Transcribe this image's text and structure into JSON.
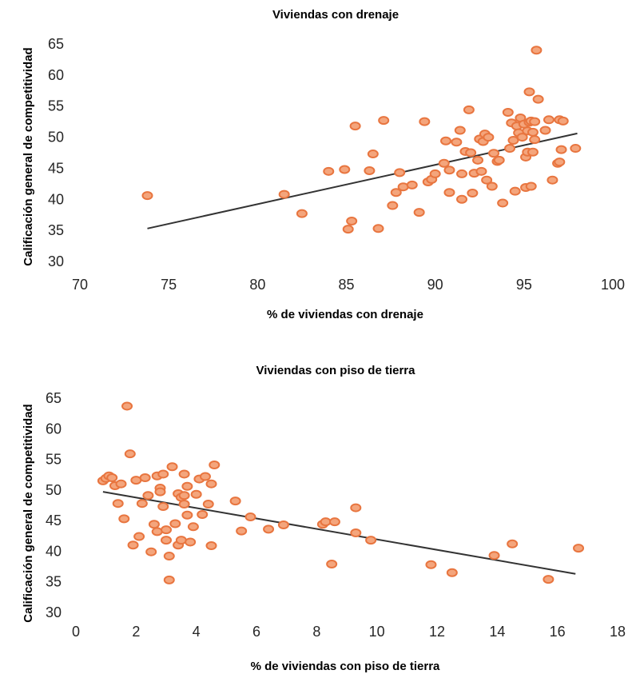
{
  "chart_data": [
    {
      "type": "scatter",
      "title": "Viviendas con drenaje",
      "xlabel": "% de viviendas con drenaje",
      "ylabel": "Calificación general de competitividad",
      "xlim": [
        70,
        100
      ],
      "ylim": [
        30,
        65
      ],
      "xticks": [
        "70",
        "75",
        "80",
        "85",
        "90",
        "95",
        "100"
      ],
      "yticks": [
        "30",
        "35",
        "40",
        "45",
        "50",
        "55",
        "60",
        "65"
      ],
      "colors": {
        "marker_fill": "#f4a57c",
        "marker_edge": "#e8753f",
        "trendline": "#333333"
      },
      "trendline": {
        "x": [
          73.8,
          98.0
        ],
        "y": [
          35.3,
          50.6
        ]
      },
      "points": {
        "x": [
          73.8,
          81.5,
          82.5,
          84.0,
          84.9,
          85.1,
          85.3,
          85.5,
          86.3,
          86.5,
          86.8,
          87.1,
          87.6,
          87.8,
          88.0,
          88.2,
          88.7,
          89.1,
          89.4,
          89.6,
          89.8,
          90.0,
          90.5,
          90.6,
          90.8,
          90.8,
          91.2,
          91.4,
          91.5,
          91.5,
          91.7,
          91.9,
          92.0,
          92.1,
          92.2,
          92.4,
          92.5,
          92.6,
          92.7,
          92.8,
          92.9,
          93.0,
          93.2,
          93.3,
          93.5,
          93.6,
          93.8,
          94.1,
          94.2,
          94.3,
          94.4,
          94.5,
          94.6,
          94.7,
          94.8,
          94.9,
          95.0,
          95.1,
          95.1,
          95.2,
          95.2,
          95.3,
          95.3,
          95.4,
          95.4,
          95.5,
          95.5,
          95.6,
          95.6,
          95.7,
          95.8,
          96.2,
          96.4,
          96.6,
          96.9,
          97.0,
          97.0,
          97.1,
          97.2,
          97.9
        ],
        "y": [
          40.6,
          40.8,
          37.7,
          44.5,
          44.8,
          35.2,
          36.5,
          51.8,
          44.6,
          47.3,
          35.3,
          52.7,
          39.0,
          41.1,
          44.3,
          42.0,
          42.3,
          37.9,
          52.5,
          42.8,
          43.2,
          44.1,
          45.8,
          49.4,
          44.7,
          41.1,
          49.2,
          51.1,
          44.1,
          40.0,
          47.7,
          54.4,
          47.5,
          41.0,
          44.2,
          46.3,
          49.7,
          44.5,
          49.3,
          50.5,
          43.1,
          50.0,
          42.1,
          47.4,
          46.1,
          46.3,
          39.4,
          54.0,
          48.2,
          52.3,
          49.5,
          41.3,
          51.8,
          50.7,
          53.1,
          50.0,
          52.1,
          41.9,
          46.8,
          47.6,
          51.0,
          52.4,
          57.3,
          42.1,
          52.6,
          50.8,
          47.6,
          52.5,
          49.6,
          64.0,
          56.1,
          51.1,
          52.8,
          43.1,
          45.8,
          52.8,
          46.0,
          48.0,
          52.6,
          48.2
        ]
      }
    },
    {
      "type": "scatter",
      "title": "Viviendas con piso de tierra",
      "xlabel": "% de viviendas con piso de tierra",
      "ylabel": "Calificación general de competitividad",
      "xlim": [
        0,
        18
      ],
      "ylim": [
        30,
        65
      ],
      "xticks": [
        "0",
        "2",
        "4",
        "6",
        "8",
        "10",
        "12",
        "14",
        "16",
        "18"
      ],
      "yticks": [
        "30",
        "35",
        "40",
        "45",
        "50",
        "55",
        "60",
        "65"
      ],
      "colors": {
        "marker_fill": "#f4a57c",
        "marker_edge": "#e8753f",
        "trendline": "#333333"
      },
      "trendline": {
        "x": [
          0.9,
          16.6
        ],
        "y": [
          49.7,
          36.3
        ]
      },
      "points": {
        "x": [
          0.9,
          1.0,
          1.1,
          1.2,
          1.3,
          1.4,
          1.5,
          1.6,
          1.7,
          1.8,
          1.9,
          2.0,
          2.1,
          2.2,
          2.3,
          2.4,
          2.5,
          2.6,
          2.7,
          2.7,
          2.8,
          2.8,
          2.9,
          2.9,
          3.0,
          3.0,
          3.1,
          3.1,
          3.2,
          3.3,
          3.4,
          3.4,
          3.5,
          3.5,
          3.6,
          3.6,
          3.6,
          3.7,
          3.7,
          3.8,
          3.9,
          4.0,
          4.1,
          4.2,
          4.3,
          4.4,
          4.5,
          4.5,
          4.6,
          5.3,
          5.5,
          5.8,
          6.4,
          6.9,
          8.2,
          8.3,
          8.5,
          8.6,
          9.3,
          9.3,
          9.8,
          11.8,
          12.5,
          13.9,
          14.5,
          15.7,
          16.7
        ],
        "y": [
          51.5,
          51.9,
          52.3,
          52.0,
          50.7,
          47.8,
          51.0,
          45.3,
          63.7,
          55.9,
          41.0,
          51.6,
          42.4,
          47.8,
          52.0,
          49.1,
          39.9,
          44.4,
          43.2,
          52.3,
          50.3,
          49.7,
          47.3,
          52.6,
          41.8,
          43.5,
          35.3,
          39.2,
          53.8,
          44.5,
          41.0,
          49.4,
          48.8,
          41.8,
          49.1,
          47.7,
          52.6,
          45.9,
          50.6,
          41.5,
          44.0,
          49.3,
          51.8,
          46.0,
          52.2,
          47.7,
          51.0,
          40.9,
          54.1,
          48.2,
          43.3,
          45.6,
          43.6,
          44.3,
          44.4,
          44.8,
          37.9,
          44.8,
          43.0,
          47.1,
          41.8,
          37.8,
          36.5,
          39.3,
          41.2,
          35.4,
          40.5
        ]
      }
    }
  ]
}
